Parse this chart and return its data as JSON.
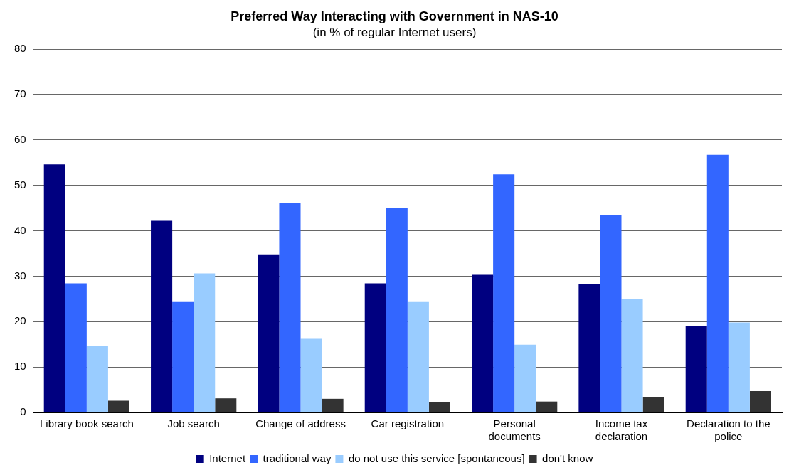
{
  "chart_data": {
    "type": "bar",
    "title": "Preferred Way Interacting with Government in NAS-10",
    "subtitle": "(in % of regular Internet users)",
    "categories": [
      "Library book search",
      "Job search",
      "Change of address",
      "Car registration",
      "Personal documents",
      "Income tax declaration",
      "Declaration to the police"
    ],
    "series": [
      {
        "name": "Internet",
        "color": "#000080",
        "values": [
          54.6,
          42.2,
          34.8,
          28.4,
          30.3,
          28.3,
          19.0
        ]
      },
      {
        "name": "traditional way",
        "color": "#3366ff",
        "values": [
          28.4,
          24.3,
          46.1,
          45.1,
          52.4,
          43.5,
          56.7
        ]
      },
      {
        "name": "do not use this service [spontaneous]",
        "color": "#99ccff",
        "values": [
          14.6,
          30.6,
          16.2,
          24.3,
          14.9,
          25.0,
          19.8
        ]
      },
      {
        "name": "don't know",
        "color": "#333333",
        "values": [
          2.6,
          3.1,
          3.0,
          2.3,
          2.4,
          3.4,
          4.7
        ]
      }
    ],
    "ylim": [
      0,
      80
    ],
    "yticks": [
      0,
      10,
      20,
      30,
      40,
      50,
      60,
      70,
      80
    ],
    "grid": "y",
    "legend": "bottom"
  }
}
